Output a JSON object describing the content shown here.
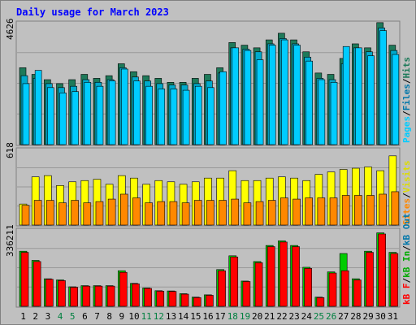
{
  "chart_data": [
    {
      "type": "bar",
      "title": "Daily usage for March 2023",
      "categories": [
        "1",
        "2",
        "3",
        "4",
        "5",
        "6",
        "7",
        "8",
        "9",
        "10",
        "11",
        "12",
        "13",
        "14",
        "15",
        "16",
        "17",
        "18",
        "19",
        "20",
        "21",
        "22",
        "23",
        "24",
        "25",
        "26",
        "27",
        "28",
        "29",
        "30",
        "31"
      ],
      "weekend_days": [
        "4",
        "5",
        "11",
        "12",
        "18",
        "19",
        "25",
        "26"
      ],
      "y_label_top": "4626",
      "y_label_mid": "618",
      "y_label_bot": "336211",
      "panels": [
        {
          "name": "hits-files-pages",
          "ylim": [
            0,
            4626
          ],
          "right_label": [
            "Pages",
            "Files",
            "Hits"
          ],
          "series": [
            {
              "name": "Hits",
              "color": "#1e7a5a",
              "values": [
                2900,
                2650,
                2450,
                2300,
                2450,
                2650,
                2500,
                2600,
                3050,
                2750,
                2600,
                2500,
                2350,
                2350,
                2500,
                2650,
                2900,
                3850,
                3750,
                3650,
                3950,
                4200,
                3950,
                3500,
                2700,
                2650,
                3250,
                3800,
                3650,
                4600,
                3750
              ]
            },
            {
              "name": "Files",
              "color": "#00aacc",
              "values": [
                2600,
                2500,
                2300,
                2150,
                2200,
                2450,
                2350,
                2450,
                2900,
                2550,
                2400,
                2300,
                2250,
                2250,
                2300,
                2400,
                2700,
                3650,
                3600,
                3500,
                3800,
                4000,
                3800,
                3300,
                2500,
                2450,
                3050,
                3650,
                3500,
                4400,
                3550
              ]
            },
            {
              "name": "Pages",
              "color": "#00ccff",
              "values": [
                2300,
                2800,
                2150,
                1950,
                2000,
                2350,
                2200,
                2400,
                2850,
                2400,
                2200,
                2100,
                2100,
                2050,
                2200,
                2150,
                2750,
                3650,
                3550,
                3200,
                3750,
                3950,
                3750,
                3150,
                2450,
                2350,
                3700,
                3650,
                3350,
                4300,
                3400
              ]
            }
          ]
        },
        {
          "name": "visits-sites",
          "ylim": [
            0,
            618
          ],
          "right_label": [
            "Sites",
            "/",
            "Visits"
          ],
          "series": [
            {
              "name": "Visits",
              "color": "#ffff00",
              "values": [
                170,
                390,
                400,
                320,
                350,
                360,
                370,
                330,
                400,
                380,
                330,
                360,
                350,
                330,
                350,
                380,
                380,
                440,
                360,
                360,
                380,
                390,
                380,
                360,
                410,
                430,
                450,
                460,
                470,
                440,
                560
              ]
            },
            {
              "name": "Sites",
              "color": "#ff8800",
              "values": [
                160,
                200,
                200,
                180,
                200,
                180,
                190,
                210,
                250,
                220,
                180,
                190,
                190,
                180,
                200,
                200,
                200,
                210,
                180,
                190,
                200,
                220,
                210,
                220,
                220,
                220,
                240,
                240,
                240,
                250,
                270
              ]
            }
          ]
        },
        {
          "name": "kb",
          "ylim": [
            0,
            336211
          ],
          "right_label": [
            "kB F",
            "/",
            "kB In",
            "/",
            "kB Out"
          ],
          "series": [
            {
              "name": "kB In",
              "color": "#00cc00",
              "values": [
                240000,
                200000,
                120000,
                115000,
                85000,
                90000,
                90000,
                90000,
                155000,
                100000,
                80000,
                68000,
                67000,
                55000,
                40000,
                50000,
                160000,
                220000,
                110000,
                195000,
                265000,
                285000,
                265000,
                170000,
                40000,
                150000,
                230000,
                120000,
                240000,
                320000,
                235000
              ]
            },
            {
              "name": "kB F",
              "color": "#ff0000",
              "values": [
                235000,
                195000,
                118000,
                112000,
                83000,
                88000,
                88000,
                88000,
                148000,
                98000,
                78000,
                66000,
                65000,
                53000,
                38000,
                48000,
                155000,
                215000,
                108000,
                190000,
                260000,
                280000,
                260000,
                165000,
                38000,
                145000,
                155000,
                115000,
                235000,
                315000,
                230000
              ]
            }
          ]
        }
      ]
    }
  ],
  "colors": {
    "background": "#c0c0c0",
    "title": "#0000ff",
    "weekend": "#008040",
    "weekday": "#000000",
    "pages_label": "#00ccff",
    "files_label": "#0077aa",
    "hits_label": "#1e7a5a",
    "visits_label": "#dddd00",
    "sites_label": "#ff8800",
    "kbin_label": "#00aa00",
    "kbf_label": "#ff0000",
    "kbout_label": "#0077aa"
  }
}
